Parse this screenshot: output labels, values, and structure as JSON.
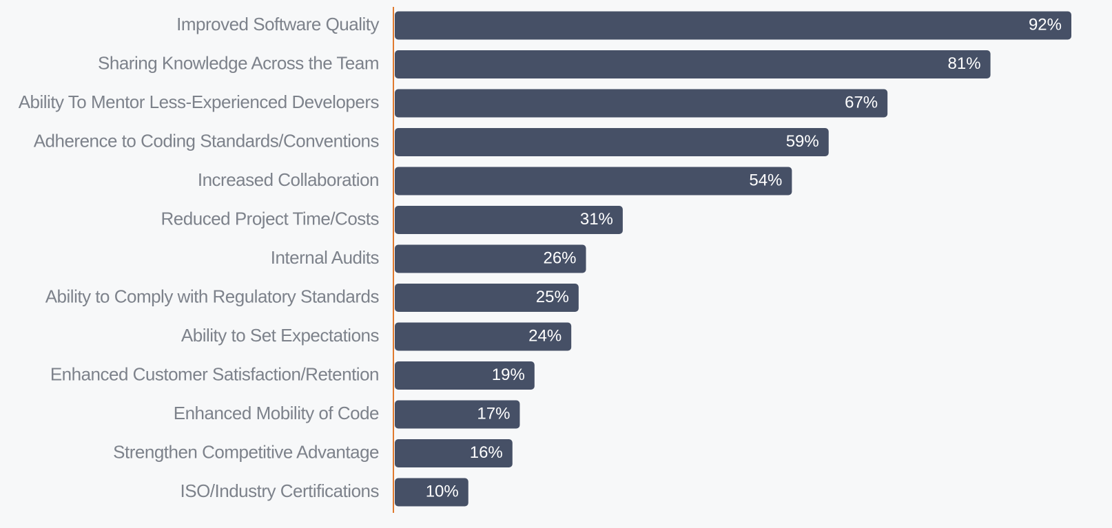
{
  "chart_data": {
    "type": "bar",
    "orientation": "horizontal",
    "color": "#465066",
    "axis_color": "#e07a2e",
    "categories": [
      "Improved Software Quality",
      "Sharing Knowledge Across the Team",
      "Ability To Mentor Less-Experienced Developers",
      "Adherence to Coding Standards/Conventions",
      "Increased Collaboration",
      "Reduced Project Time/Costs",
      "Internal Audits",
      "Ability to Comply with Regulatory Standards",
      "Ability to Set Expectations",
      "Enhanced Customer Satisfaction/Retention",
      "Enhanced Mobility of Code",
      "Strengthen Competitive Advantage",
      "ISO/Industry Certifications"
    ],
    "values": [
      92,
      81,
      67,
      59,
      54,
      31,
      26,
      25,
      24,
      19,
      17,
      16,
      10
    ],
    "value_labels": [
      "92%",
      "81%",
      "67%",
      "59%",
      "54%",
      "31%",
      "26%",
      "25%",
      "24%",
      "19%",
      "17%",
      "16%",
      "10%"
    ]
  }
}
